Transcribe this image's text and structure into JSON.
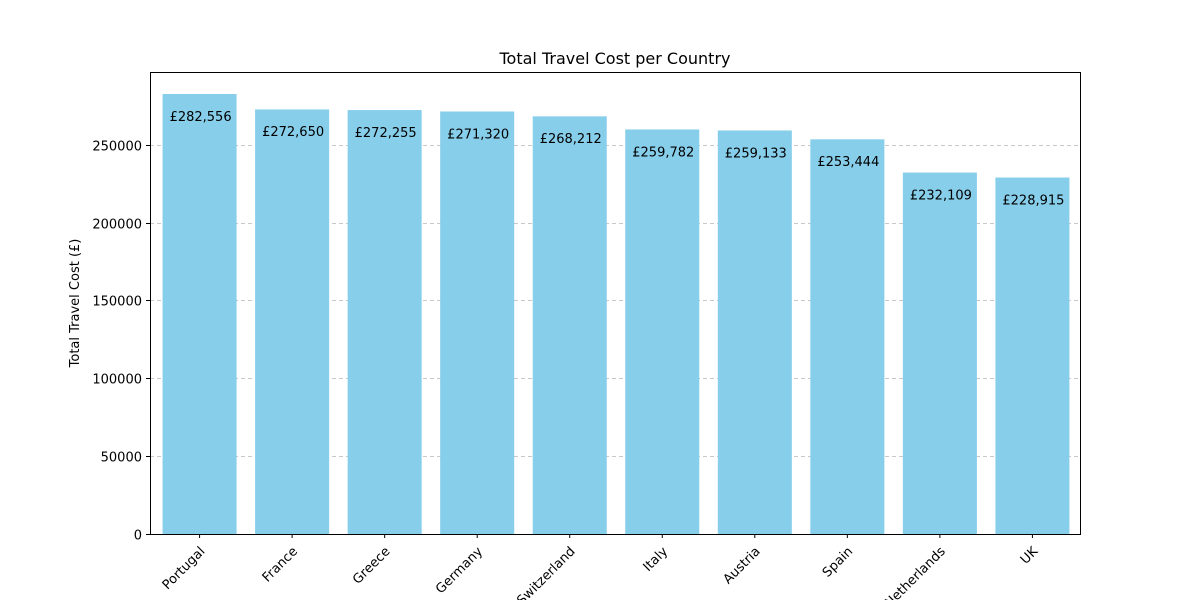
{
  "chart_data": {
    "type": "bar",
    "title": "Total Travel Cost per Country",
    "xlabel": "",
    "ylabel": "Total Travel Cost (£)",
    "categories": [
      "Portugal",
      "France",
      "Greece",
      "Germany",
      "Switzerland",
      "Italy",
      "Austria",
      "Spain",
      "Netherlands",
      "UK"
    ],
    "values": [
      282556,
      272650,
      272255,
      271320,
      268212,
      259782,
      259133,
      253444,
      232109,
      228915
    ],
    "value_labels": [
      "£282,556",
      "£272,650",
      "£272,255",
      "£271,320",
      "£268,212",
      "£259,782",
      "£259,133",
      "£253,444",
      "£232,109",
      "£228,915"
    ],
    "ylim": [
      0,
      296684
    ],
    "yticks": [
      0,
      50000,
      100000,
      150000,
      200000,
      250000
    ],
    "ytick_labels": [
      "0",
      "50000",
      "100000",
      "150000",
      "200000",
      "250000"
    ],
    "grid": "y-dashed",
    "bar_color": "#87ceeb"
  }
}
